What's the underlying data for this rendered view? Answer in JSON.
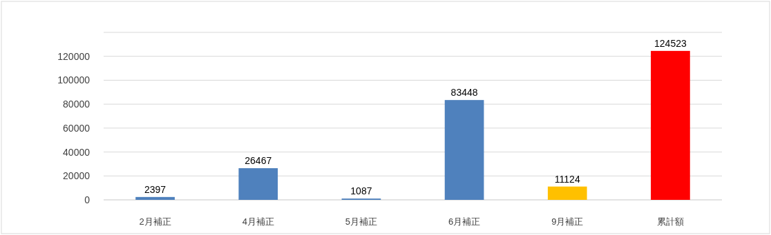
{
  "chart_data": {
    "type": "bar",
    "categories": [
      "2月補正",
      "4月補正",
      "5月補正",
      "6月補正",
      "9月補正",
      "累計額"
    ],
    "values": [
      2397,
      26467,
      1087,
      83448,
      11124,
      124523
    ],
    "colors": [
      "#4f81bd",
      "#4f81bd",
      "#4f81bd",
      "#4f81bd",
      "#ffc000",
      "#ff0000"
    ],
    "ylim": [
      0,
      140000
    ],
    "yticks": [
      0,
      20000,
      40000,
      60000,
      80000,
      100000,
      120000,
      {
        "value": 140000,
        "label": null
      }
    ],
    "grid": "y",
    "data_labels": true
  }
}
